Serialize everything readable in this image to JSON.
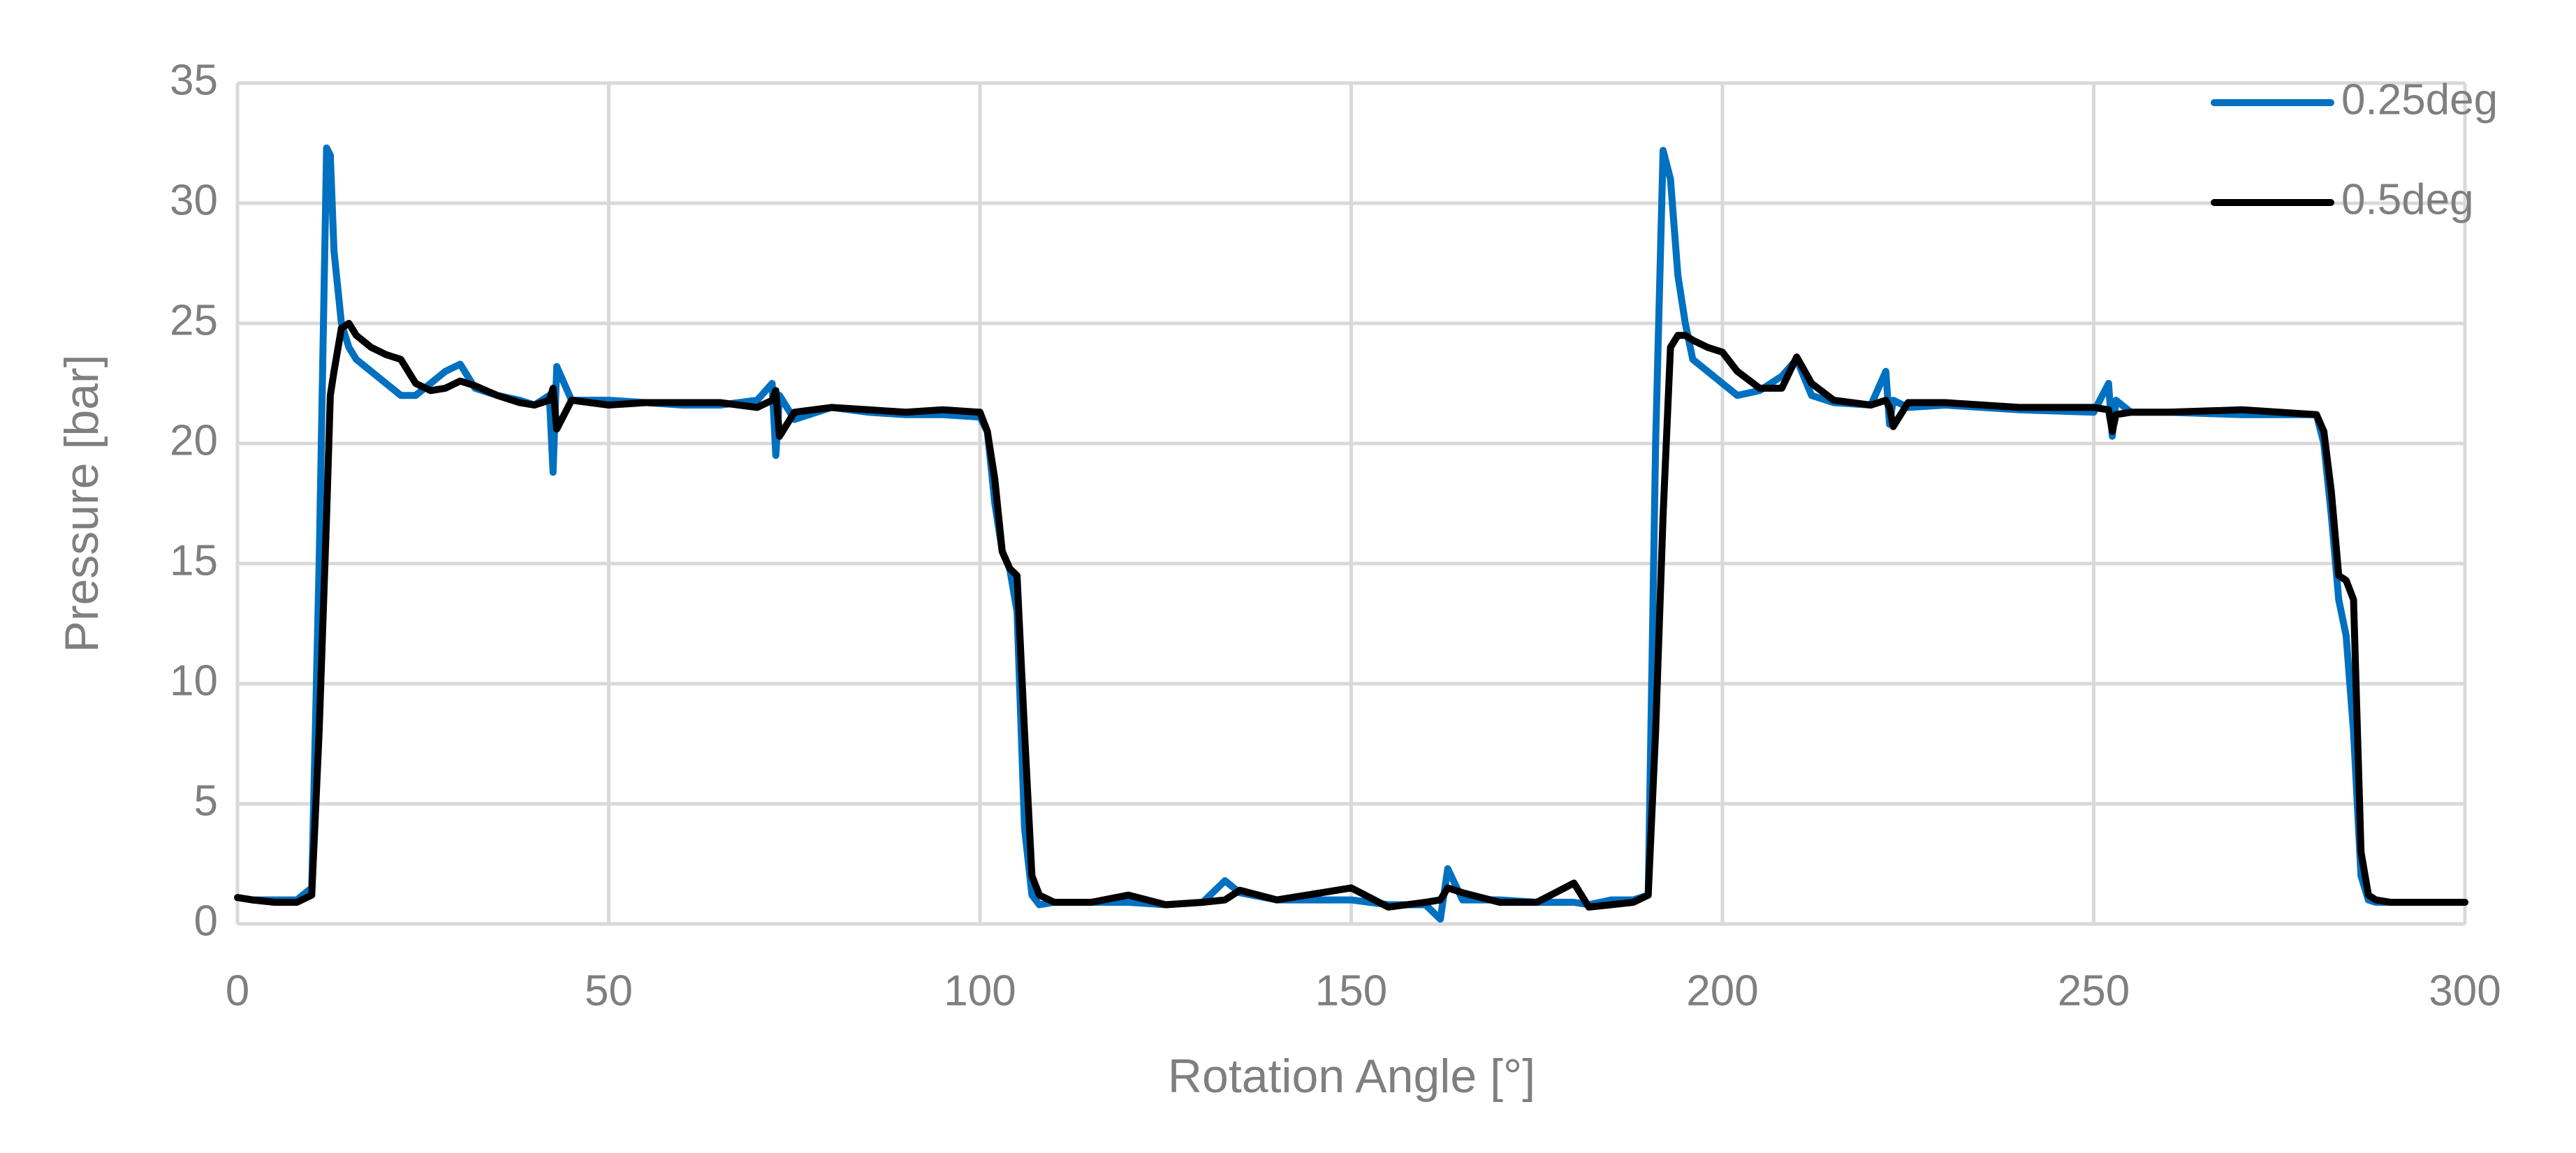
{
  "chart_data": {
    "type": "line",
    "xlabel": "Rotation Angle [°]",
    "ylabel": "Pressure [bar]",
    "xlim": [
      0,
      300
    ],
    "xticks": [
      0,
      50,
      100,
      150,
      200,
      250,
      300
    ],
    "ylim": [
      0,
      35
    ],
    "yticks": [
      0,
      5,
      10,
      15,
      20,
      25,
      30,
      35
    ],
    "grid": true,
    "legend": "upper right",
    "x": [
      0,
      2,
      5,
      8,
      10,
      11,
      12,
      12.5,
      13,
      14,
      15,
      16,
      18,
      20,
      22,
      24,
      26,
      28,
      30,
      32,
      35,
      38,
      40,
      42,
      42.5,
      43,
      45,
      50,
      55,
      60,
      65,
      70,
      72,
      72.5,
      73,
      75,
      80,
      85,
      90,
      95,
      100,
      101,
      102,
      103,
      104,
      105,
      106,
      107,
      108,
      110,
      115,
      120,
      125,
      130,
      133,
      135,
      140,
      150,
      155,
      160,
      162,
      163,
      165,
      170,
      175,
      180,
      182,
      185,
      188,
      190,
      191,
      192,
      193,
      194,
      195,
      196,
      198,
      200,
      202,
      205,
      208,
      210,
      212,
      215,
      220,
      222,
      222.5,
      223,
      225,
      230,
      240,
      250,
      252,
      252.5,
      253,
      255,
      260,
      270,
      275,
      280,
      281,
      282,
      283,
      284,
      285,
      286,
      287,
      288,
      290,
      295,
      300
    ],
    "series": [
      {
        "name": "0.25deg",
        "color": "#0070c0",
        "values": [
          1.1,
          1.0,
          1.0,
          1.0,
          1.5,
          15,
          32.3,
          32,
          28,
          25,
          24,
          23.5,
          23,
          22.5,
          22,
          22,
          22.5,
          23,
          23.3,
          22.3,
          22,
          21.8,
          21.6,
          22,
          18.8,
          23.2,
          21.8,
          21.8,
          21.7,
          21.6,
          21.6,
          21.8,
          22.5,
          19.5,
          22,
          21,
          21.5,
          21.3,
          21.2,
          21.2,
          21.1,
          20.5,
          17.5,
          15.5,
          14.8,
          13,
          4,
          1.2,
          0.8,
          0.9,
          0.9,
          0.9,
          0.8,
          0.9,
          1.8,
          1.3,
          1.0,
          1.0,
          0.8,
          0.8,
          0.2,
          2.3,
          1.0,
          1.0,
          0.9,
          0.9,
          0.8,
          1.0,
          1.0,
          1.2,
          20,
          32.2,
          31,
          27,
          25,
          23.5,
          23,
          22.5,
          22,
          22.2,
          22.8,
          23.5,
          22,
          21.7,
          21.6,
          23,
          20.8,
          21.8,
          21.5,
          21.6,
          21.4,
          21.3,
          22.5,
          20.3,
          21.8,
          21.3,
          21.3,
          21.2,
          21.2,
          21.2,
          20,
          17,
          13.5,
          12,
          8,
          2,
          1.0,
          0.9,
          0.9,
          0.9,
          0.9
        ]
      },
      {
        "name": "0.5deg",
        "color": "#000000",
        "values": [
          1.1,
          1.0,
          0.9,
          0.9,
          1.2,
          8,
          17,
          22,
          23,
          24.8,
          25,
          24.5,
          24,
          23.7,
          23.5,
          22.5,
          22.2,
          22.3,
          22.6,
          22.4,
          22,
          21.7,
          21.6,
          21.8,
          22.3,
          20.6,
          21.8,
          21.6,
          21.7,
          21.7,
          21.7,
          21.5,
          21.8,
          22.2,
          20.3,
          21.3,
          21.5,
          21.4,
          21.3,
          21.4,
          21.3,
          20.5,
          18.5,
          15.5,
          14.8,
          14.5,
          8,
          2,
          1.2,
          0.9,
          0.9,
          1.2,
          0.8,
          0.9,
          1.0,
          1.4,
          1.0,
          1.5,
          0.7,
          0.9,
          1.0,
          1.5,
          1.3,
          0.9,
          0.9,
          1.7,
          0.7,
          0.8,
          0.9,
          1.2,
          8,
          17,
          24,
          24.5,
          24.5,
          24.3,
          24,
          23.8,
          23,
          22.3,
          22.3,
          23.6,
          22.5,
          21.8,
          21.6,
          21.8,
          21.5,
          20.7,
          21.7,
          21.7,
          21.5,
          21.5,
          21.4,
          20.5,
          21.2,
          21.3,
          21.3,
          21.4,
          21.3,
          21.2,
          20.5,
          18,
          14.5,
          14.3,
          13.5,
          3,
          1.2,
          1.0,
          0.9,
          0.9,
          0.9
        ]
      }
    ]
  }
}
